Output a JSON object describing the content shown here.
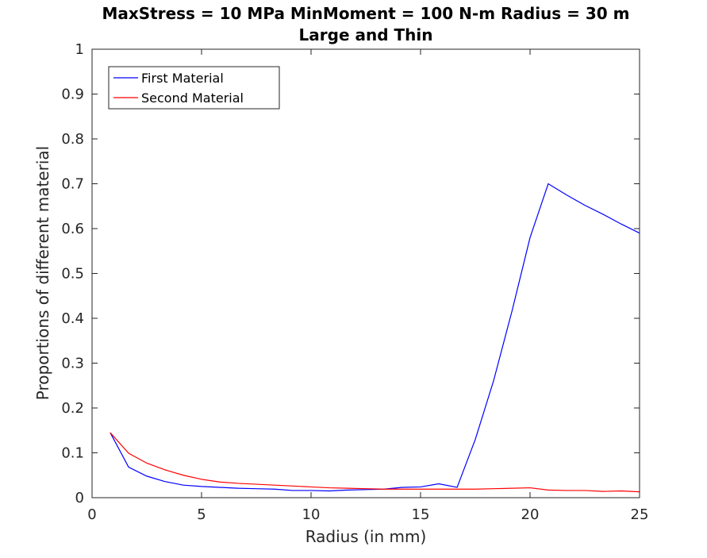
{
  "chart_data": {
    "type": "line",
    "title": "MaxStress = 10 MPa MinMoment = 100 N-m Radius = 30 m",
    "subtitle": "Large and Thin",
    "xlabel": "Radius (in mm)",
    "ylabel": "Proportions of different material",
    "xlim": [
      0,
      25
    ],
    "ylim": [
      0,
      1
    ],
    "xticks": [
      0,
      5,
      10,
      15,
      20,
      25
    ],
    "xtick_labels": [
      "0",
      "5",
      "10",
      "15",
      "20",
      "25"
    ],
    "yticks": [
      0,
      0.1,
      0.2,
      0.3,
      0.4,
      0.5,
      0.6,
      0.7,
      0.8,
      0.9,
      1
    ],
    "ytick_labels": [
      "0",
      "0.1",
      "0.2",
      "0.3",
      "0.4",
      "0.5",
      "0.6",
      "0.7",
      "0.8",
      "0.9",
      "1"
    ],
    "grid": false,
    "legend_position": "top-left",
    "series": [
      {
        "name": "First Material",
        "color": "#0000ff",
        "x": [
          0.83,
          1.67,
          2.5,
          3.33,
          4.17,
          5.0,
          5.83,
          6.67,
          7.5,
          8.33,
          9.17,
          10.0,
          10.83,
          11.67,
          12.5,
          13.33,
          14.17,
          15.0,
          15.83,
          16.67,
          17.5,
          18.33,
          19.17,
          20.0,
          20.83,
          21.67,
          22.5,
          23.33,
          24.17,
          25.0
        ],
        "y": [
          0.145,
          0.068,
          0.048,
          0.036,
          0.028,
          0.025,
          0.023,
          0.021,
          0.02,
          0.019,
          0.016,
          0.016,
          0.015,
          0.017,
          0.018,
          0.019,
          0.023,
          0.024,
          0.031,
          0.023,
          0.13,
          0.26,
          0.415,
          0.58,
          0.7,
          0.675,
          0.652,
          0.632,
          0.61,
          0.59
        ]
      },
      {
        "name": "Second Material",
        "color": "#ff0000",
        "x": [
          0.83,
          1.67,
          2.5,
          3.33,
          4.17,
          5.0,
          5.83,
          6.67,
          7.5,
          8.33,
          9.17,
          10.0,
          10.83,
          11.67,
          12.5,
          13.33,
          14.17,
          15.0,
          15.83,
          16.67,
          17.5,
          18.33,
          19.17,
          20.0,
          20.83,
          21.67,
          22.5,
          23.33,
          24.17,
          25.0
        ],
        "y": [
          0.145,
          0.099,
          0.077,
          0.062,
          0.05,
          0.041,
          0.035,
          0.032,
          0.03,
          0.028,
          0.026,
          0.024,
          0.022,
          0.021,
          0.02,
          0.019,
          0.019,
          0.019,
          0.019,
          0.019,
          0.019,
          0.02,
          0.021,
          0.022,
          0.017,
          0.016,
          0.016,
          0.014,
          0.015,
          0.013
        ]
      }
    ]
  }
}
